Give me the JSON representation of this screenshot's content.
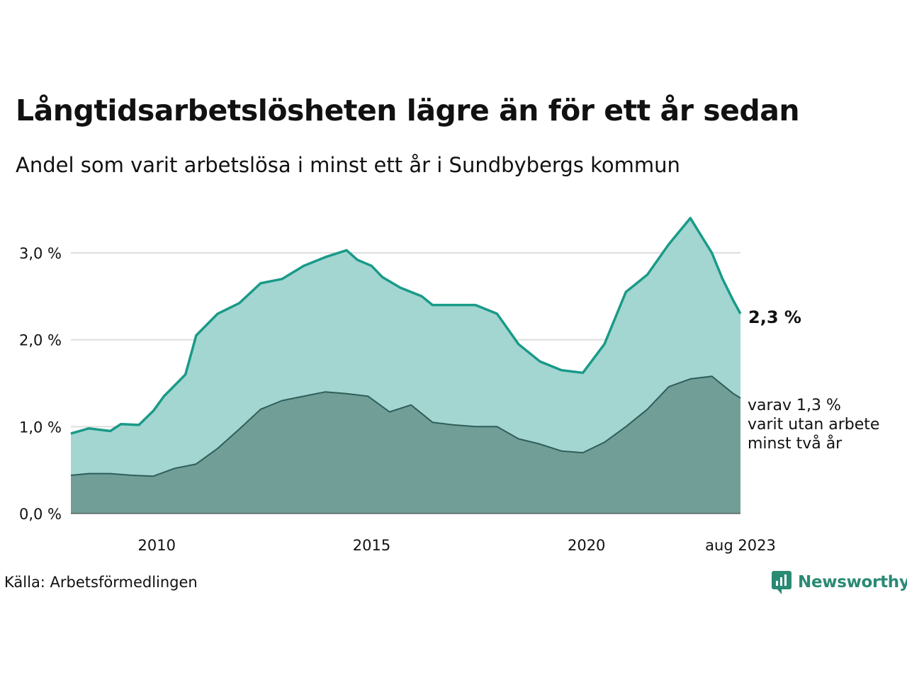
{
  "title": "Långtidsarbetslösheten lägre än för ett år sedan",
  "subtitle": "Andel som varit arbetslösa i minst ett år i Sundbybergs kommun",
  "source": "Källa: Arbetsförmedlingen",
  "logo": {
    "text": "Newsworthy",
    "icon": "newsworthy-chat-chart-icon",
    "color": "#2a8a74"
  },
  "annotations": {
    "main_value": "2,3 %",
    "sub_lines": [
      "varav 1,3 %",
      "varit utan arbete",
      "minst två år"
    ]
  },
  "colors": {
    "main_line": "#1a9a88",
    "main_fill": "#a3d6d1",
    "sub_line": "#2f5e58",
    "sub_fill": "#729e98",
    "grid": "#dddddd"
  },
  "chart_data": {
    "type": "area",
    "title": "Långtidsarbetslösheten lägre än för ett år sedan",
    "xlabel": "",
    "ylabel": "",
    "ylim": [
      0,
      3.5
    ],
    "yticks": [
      0,
      1,
      2,
      3
    ],
    "ytick_labels": [
      "0,0 %",
      "1,0 %",
      "2,0 %",
      "3,0 %"
    ],
    "xlim": [
      "2008-01",
      "2023-08"
    ],
    "xticks": [
      "2010-01",
      "2015-01",
      "2020-01",
      "2023-08"
    ],
    "xtick_labels": [
      "2010",
      "2015",
      "2020",
      "aug 2023"
    ],
    "grid": true,
    "legend": "none",
    "series": [
      {
        "points": [
          [
            "2008-01",
            0.92
          ],
          [
            "2008-06",
            0.98
          ],
          [
            "2008-12",
            0.95
          ],
          [
            "2009-03",
            1.03
          ],
          [
            "2009-08",
            1.02
          ],
          [
            "2009-12",
            1.18
          ],
          [
            "2010-03",
            1.35
          ],
          [
            "2010-09",
            1.6
          ],
          [
            "2010-12",
            2.05
          ],
          [
            "2011-06",
            2.3
          ],
          [
            "2011-12",
            2.42
          ],
          [
            "2012-06",
            2.65
          ],
          [
            "2012-12",
            2.7
          ],
          [
            "2013-06",
            2.85
          ],
          [
            "2013-12",
            2.95
          ],
          [
            "2014-06",
            3.03
          ],
          [
            "2014-09",
            2.92
          ],
          [
            "2015-01",
            2.85
          ],
          [
            "2015-04",
            2.72
          ],
          [
            "2015-09",
            2.6
          ],
          [
            "2016-03",
            2.5
          ],
          [
            "2016-06",
            2.4
          ],
          [
            "2016-12",
            2.4
          ],
          [
            "2017-06",
            2.4
          ],
          [
            "2017-12",
            2.3
          ],
          [
            "2018-06",
            1.95
          ],
          [
            "2018-12",
            1.75
          ],
          [
            "2019-06",
            1.65
          ],
          [
            "2019-12",
            1.62
          ],
          [
            "2020-06",
            1.95
          ],
          [
            "2020-12",
            2.55
          ],
          [
            "2021-06",
            2.75
          ],
          [
            "2021-12",
            3.1
          ],
          [
            "2022-06",
            3.4
          ],
          [
            "2022-09",
            3.2
          ],
          [
            "2022-12",
            3.0
          ],
          [
            "2023-03",
            2.7
          ],
          [
            "2023-06",
            2.45
          ],
          [
            "2023-08",
            2.3
          ]
        ]
      },
      {
        "points": [
          [
            "2008-01",
            0.44
          ],
          [
            "2008-06",
            0.46
          ],
          [
            "2008-12",
            0.46
          ],
          [
            "2009-06",
            0.44
          ],
          [
            "2009-12",
            0.43
          ],
          [
            "2010-06",
            0.52
          ],
          [
            "2010-12",
            0.57
          ],
          [
            "2011-06",
            0.75
          ],
          [
            "2011-12",
            0.97
          ],
          [
            "2012-06",
            1.2
          ],
          [
            "2012-12",
            1.3
          ],
          [
            "2013-06",
            1.35
          ],
          [
            "2013-12",
            1.4
          ],
          [
            "2014-06",
            1.38
          ],
          [
            "2014-12",
            1.35
          ],
          [
            "2015-06",
            1.17
          ],
          [
            "2015-12",
            1.25
          ],
          [
            "2016-06",
            1.05
          ],
          [
            "2016-12",
            1.02
          ],
          [
            "2017-06",
            1.0
          ],
          [
            "2017-12",
            1.0
          ],
          [
            "2018-06",
            0.86
          ],
          [
            "2018-12",
            0.8
          ],
          [
            "2019-06",
            0.72
          ],
          [
            "2019-12",
            0.7
          ],
          [
            "2020-06",
            0.82
          ],
          [
            "2020-12",
            1.0
          ],
          [
            "2021-06",
            1.2
          ],
          [
            "2021-12",
            1.46
          ],
          [
            "2022-06",
            1.55
          ],
          [
            "2022-12",
            1.58
          ],
          [
            "2023-06",
            1.38
          ],
          [
            "2023-08",
            1.33
          ]
        ]
      }
    ]
  }
}
